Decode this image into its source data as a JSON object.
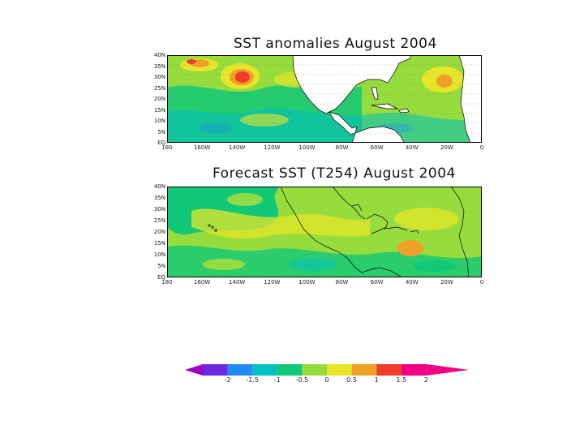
{
  "panels": [
    {
      "title": "SST anomalies August 2004",
      "lat_labels": [
        "40N",
        "35N",
        "30N",
        "25N",
        "20N",
        "15N",
        "10N",
        "5N",
        "EQ"
      ],
      "lon_labels": [
        "180",
        "160W",
        "140W",
        "120W",
        "100W",
        "80W",
        "60W",
        "40W",
        "20W",
        "0"
      ]
    },
    {
      "title": "Forecast SST (T254) August 2004",
      "lat_labels": [
        "40N",
        "35N",
        "30N",
        "25N",
        "20N",
        "15N",
        "10N",
        "5N",
        "EQ"
      ],
      "lon_labels": [
        "180",
        "160W",
        "140W",
        "120W",
        "100W",
        "80W",
        "60W",
        "40W",
        "20W",
        "0"
      ]
    }
  ],
  "colorbar": {
    "labels": [
      "-2",
      "-1.5",
      "-1",
      "-0.5",
      "0",
      "0.5",
      "1",
      "1.5",
      "2"
    ],
    "colors": [
      "#a000c8",
      "#6e28e0",
      "#1e8cf0",
      "#00c0c0",
      "#10c878",
      "#96dc3c",
      "#e6e628",
      "#f0a028",
      "#f03c28",
      "#f00082"
    ]
  },
  "map_colors": {
    "land": "#ffffff",
    "coast": "#000000"
  }
}
